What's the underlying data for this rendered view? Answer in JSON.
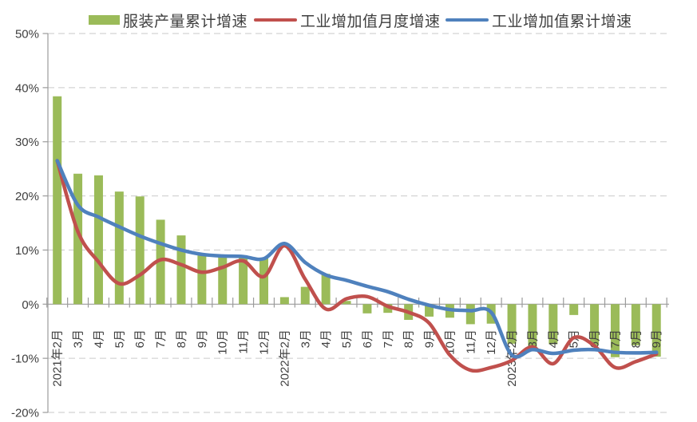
{
  "legend": {
    "items": [
      {
        "label": "服装产量累计增速",
        "marker": "bar",
        "color": "#9BBB59"
      },
      {
        "label": "工业增加值月度增速",
        "marker": "line",
        "color": "#C0504D"
      },
      {
        "label": "工业增加值累计增速",
        "marker": "line",
        "color": "#4F81BD"
      }
    ]
  },
  "chart_data": {
    "type": "bar+line combo",
    "unit": "percent",
    "grid": "horizontal-dashed",
    "legend_position": "top",
    "smoothed_lines": true,
    "categories": [
      "2021年2月",
      "3月",
      "4月",
      "5月",
      "6月",
      "7月",
      "8月",
      "9月",
      "10月",
      "11月",
      "12月",
      "2022年2月",
      "3月",
      "4月",
      "5月",
      "6月",
      "7月",
      "8月",
      "9月",
      "10月",
      "11月",
      "12月",
      "2023年2月",
      "3月",
      "4月",
      "5月",
      "6月",
      "7月",
      "8月",
      "9月"
    ],
    "series": [
      {
        "name": "服装产量累计增速",
        "type": "bar",
        "color": "#9BBB59",
        "values": [
          38.4,
          24.1,
          23.8,
          20.8,
          19.9,
          15.6,
          12.7,
          9.0,
          8.9,
          8.8,
          8.5,
          1.3,
          3.2,
          5.6,
          0.6,
          -1.7,
          -1.6,
          -2.9,
          -2.3,
          -2.5,
          -3.7,
          -3.6,
          -7.3,
          -7.9,
          -7.4,
          -2.0,
          -7.6,
          -9.8,
          -7.6,
          -9.7
        ]
      },
      {
        "name": "工业增加值月度增速",
        "type": "line",
        "color": "#C0504D",
        "values": [
          26.5,
          13.4,
          7.8,
          3.8,
          5.4,
          8.2,
          7.3,
          5.9,
          6.8,
          8.0,
          5.1,
          10.8,
          4.6,
          -0.9,
          1.0,
          1.4,
          -0.4,
          -1.5,
          -3.5,
          -9.4,
          -12.2,
          -11.7,
          -10.4,
          -7.9,
          -11.0,
          -6.2,
          -7.7,
          -11.7,
          -10.6,
          -9.2
        ]
      },
      {
        "name": "工业增加值累计增速",
        "type": "line",
        "color": "#4F81BD",
        "values": [
          26.5,
          18.3,
          16.1,
          14.3,
          12.6,
          11.2,
          10.0,
          9.2,
          8.9,
          8.8,
          8.4,
          11.2,
          7.7,
          5.4,
          4.4,
          3.3,
          2.3,
          0.9,
          -0.2,
          -1.0,
          -1.2,
          -1.5,
          -9.4,
          -8.4,
          -9.1,
          -8.5,
          -8.4,
          -8.9,
          -9.0,
          -8.9
        ]
      }
    ],
    "y_axis": {
      "ticks": [
        "50%",
        "40%",
        "30%",
        "20%",
        "10%",
        "0%",
        "-10%",
        "-20%"
      ],
      "values": [
        50,
        40,
        30,
        20,
        10,
        0,
        -10,
        -20
      ],
      "min": -20,
      "max": 50
    },
    "colors": {
      "bar": "#9BBB59",
      "line_monthly": "#C0504D",
      "line_cumulative": "#4F81BD",
      "gridline": "#CACACA",
      "axis": "#9B9B9B",
      "text": "#3F3F3F"
    }
  }
}
